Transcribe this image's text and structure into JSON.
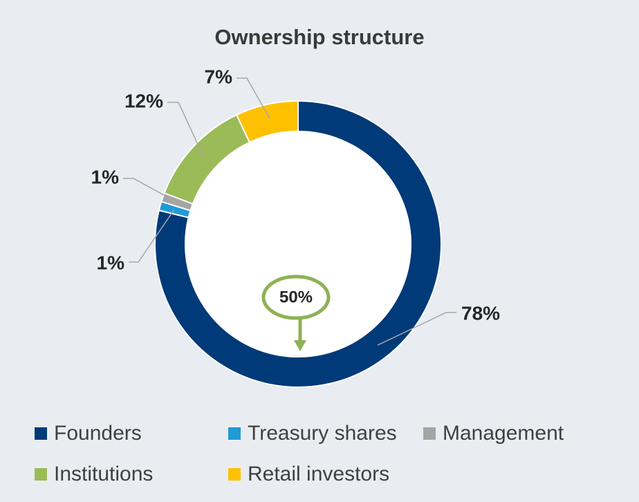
{
  "chart_data": {
    "type": "donut",
    "title": "Ownership structure",
    "categories": [
      "Founders",
      "Treasury shares",
      "Management",
      "Institutions",
      "Retail investors"
    ],
    "values": [
      78,
      1,
      1,
      12,
      7
    ],
    "value_labels": [
      "78%",
      "1%",
      "1%",
      "12%",
      "7%"
    ],
    "colors": [
      "#003a78",
      "#1f9ad6",
      "#a5a5a5",
      "#9bbb59",
      "#ffc000"
    ],
    "annotation": "50%",
    "legend": "bottom"
  }
}
